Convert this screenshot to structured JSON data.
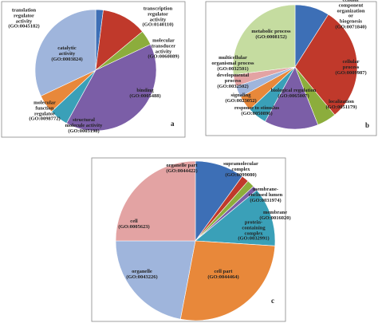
{
  "chart_data": [
    {
      "type": "pie",
      "panel": "a",
      "categories": [
        "translation\nregulator\nactivity\n(GO:0045182)",
        "transcription\nregulator\nactivity\n(GO:0140110)",
        "molecular\ntransducer\nactivity\n(GO:0060089)",
        "binding\n(GO:0005488)",
        "structural\nmolecule activity\n(GO:0005198)",
        "molecular\nfunction\nregulator\n(GO:0098772)",
        "catalytic\nactivity\n(GO:0003824)"
      ],
      "values": [
        2,
        12,
        4,
        40,
        5,
        5,
        32
      ],
      "colors": [
        "#3d6fb6",
        "#c0392b",
        "#8cad3c",
        "#7b5ea7",
        "#3aa0b8",
        "#e8883a",
        "#9fb5dc"
      ]
    },
    {
      "type": "pie",
      "panel": "b",
      "categories": [
        "cellular component\norganization or\nbiogenesis\n(GO:0071840)",
        "cellular process\n(GO:0009987)",
        "localization\n(GO:0051179)",
        "biological regulation\n(GO:0065007)",
        "response to stimulus\n(GO:0050896)",
        "signaling\n(GO:0023052)",
        "developmental\nprocess\n(GO:0032502)",
        "multicellular\norganismal process\n(GO:0032501)",
        "metabolic process\n(GO:0008152)"
      ],
      "values": [
        9,
        30,
        5,
        14,
        5,
        4,
        3,
        3,
        27
      ],
      "colors": [
        "#3d6fb6",
        "#c0392b",
        "#8cad3c",
        "#7b5ea7",
        "#3aa0b8",
        "#e8883a",
        "#9fb5dc",
        "#e3a3a3",
        "#c5dca0"
      ]
    },
    {
      "type": "pie",
      "panel": "c",
      "categories": [
        "organelle part\n(GO:0044422)",
        "supramolecular\ncomplex\n(GO:0099080)",
        "membrane-\nenclosed lumen\n(GO:0031974)",
        "membrane\n(GO:0016020)",
        "protein-\ncontaining\ncomplex\n(GO:0032991)",
        "cell part\n(GO:0044464)",
        "organelle\n(GO:0043226)",
        "cell\n(GO:0005623)"
      ],
      "values": [
        10,
        1.5,
        1.5,
        1,
        12,
        27,
        22,
        25
      ],
      "colors": [
        "#3d6fb6",
        "#c0392b",
        "#8cad3c",
        "#7b5ea7",
        "#3aa0b8",
        "#e8883a",
        "#9fb5dc",
        "#e3a3a3"
      ]
    }
  ]
}
